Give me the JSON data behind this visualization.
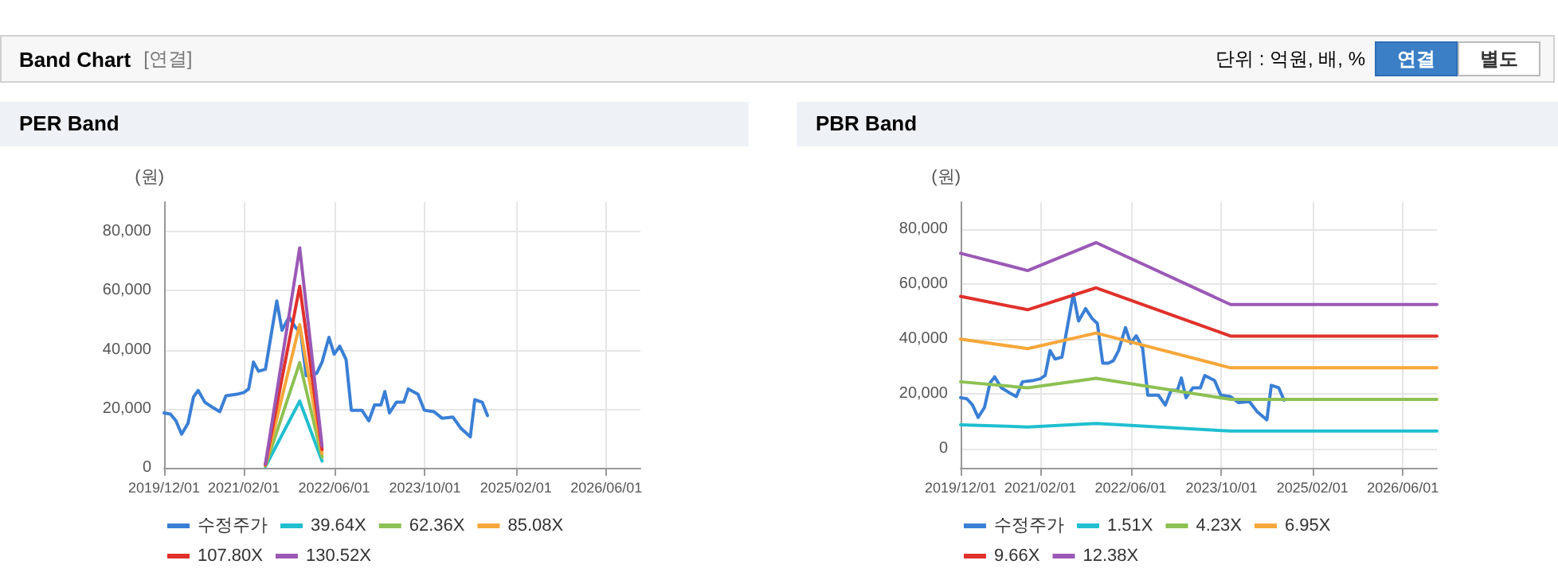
{
  "chart_data": [
    {
      "type": "other",
      "title": "Band Chart",
      "subtitle": "[연결]",
      "annotations": [
        "단위 : 억원, 배, %",
        "연결",
        "별도"
      ]
    },
    {
      "type": "line",
      "title": "PER Band",
      "ylabel": "(원)",
      "xlim": [
        "2019-12-01",
        "2026-12-01"
      ],
      "xticks": [
        {
          "value": "2019-12-01",
          "label": "2019/12/01"
        },
        {
          "value": "2021-02-01",
          "label": "2021/02/01"
        },
        {
          "value": "2022-06-01",
          "label": "2022/06/01"
        },
        {
          "value": "2023-10-01",
          "label": "2023/10/01"
        },
        {
          "value": "2025-02-01",
          "label": "2025/02/01"
        },
        {
          "value": "2026-06-01",
          "label": "2026/06/01"
        }
      ],
      "ylim": [
        0,
        90000
      ],
      "yticks": [
        {
          "value": 0,
          "label": "0"
        },
        {
          "value": 20000,
          "label": "20,000"
        },
        {
          "value": 40000,
          "label": "40,000"
        },
        {
          "value": 60000,
          "label": "60,000"
        },
        {
          "value": 80000,
          "label": "80,000"
        }
      ],
      "grid": true,
      "legend": "bottom",
      "series": [
        {
          "name": "수정주가",
          "color": "#3a7fd5",
          "x": [
            "2019-12-01",
            "2020-01-04",
            "2020-02-03",
            "2020-03-04",
            "2020-04-07",
            "2020-05-07",
            "2020-06-01",
            "2020-07-07",
            "2020-08-19",
            "2020-09-25",
            "2020-10-28",
            "2020-12-25",
            "2021-02-01",
            "2021-02-27",
            "2021-03-25",
            "2021-04-21",
            "2021-05-28",
            "2021-07-28",
            "2021-08-25",
            "2021-10-02",
            "2021-11-06",
            "2021-12-04",
            "2022-01-02",
            "2022-02-01",
            "2022-02-28",
            "2022-03-28",
            "2022-05-04",
            "2022-06-01",
            "2022-07-01",
            "2022-08-04",
            "2022-09-01",
            "2022-10-28",
            "2022-12-04",
            "2023-01-04",
            "2023-02-07",
            "2023-02-28",
            "2023-03-25",
            "2023-05-01",
            "2023-06-10",
            "2023-07-04",
            "2023-08-25",
            "2023-09-28",
            "2023-11-19",
            "2024-01-01",
            "2024-02-28",
            "2024-04-10",
            "2024-06-01",
            "2024-06-25",
            "2024-08-04",
            "2024-09-01"
          ],
          "values": [
            18600,
            18200,
            15900,
            11400,
            15000,
            24000,
            26200,
            22200,
            20400,
            19000,
            24400,
            24900,
            25500,
            26700,
            35800,
            32700,
            33400,
            56500,
            46600,
            51100,
            47500,
            45700,
            31200,
            31200,
            32100,
            35800,
            44200,
            38500,
            41200,
            36700,
            19500,
            19500,
            15900,
            21300,
            21300,
            25800,
            18600,
            22200,
            22200,
            26700,
            24900,
            19500,
            19000,
            16800,
            17200,
            13500,
            10500,
            23100,
            22200,
            17700
          ]
        },
        {
          "name": "39.64X",
          "color": "#1fbfcf",
          "x": [
            "2021-05-28",
            "2021-11-28",
            "2022-03-28"
          ],
          "values": [
            400,
            22600,
            2300
          ]
        },
        {
          "name": "62.36X",
          "color": "#8dc153",
          "x": [
            "2021-05-28",
            "2021-11-28",
            "2022-03-28"
          ],
          "values": [
            600,
            35600,
            3600
          ]
        },
        {
          "name": "85.08X",
          "color": "#f8a73a",
          "x": [
            "2021-05-28",
            "2021-11-28",
            "2022-03-28"
          ],
          "values": [
            900,
            48500,
            4900
          ]
        },
        {
          "name": "107.80X",
          "color": "#e0312b",
          "x": [
            "2021-05-28",
            "2021-11-28",
            "2022-03-28"
          ],
          "values": [
            1100,
            61500,
            6200
          ]
        },
        {
          "name": "130.52X",
          "color": "#9b59b6",
          "x": [
            "2021-05-28",
            "2021-11-28",
            "2022-03-28"
          ],
          "values": [
            1300,
            74500,
            7400
          ]
        }
      ]
    },
    {
      "type": "line",
      "title": "PBR Band",
      "ylabel": "(원)",
      "xlim": [
        "2019-12-01",
        "2026-12-01"
      ],
      "xticks": [
        {
          "value": "2019-12-01",
          "label": "2019/12/01"
        },
        {
          "value": "2021-02-01",
          "label": "2021/02/01"
        },
        {
          "value": "2022-06-01",
          "label": "2022/06/01"
        },
        {
          "value": "2023-10-01",
          "label": "2023/10/01"
        },
        {
          "value": "2025-02-01",
          "label": "2025/02/01"
        },
        {
          "value": "2026-06-01",
          "label": "2026/06/01"
        }
      ],
      "ylim": [
        -7000,
        90000
      ],
      "yticks": [
        {
          "value": 0,
          "label": "0"
        },
        {
          "value": 20000,
          "label": "20,000"
        },
        {
          "value": 40000,
          "label": "40,000"
        },
        {
          "value": 60000,
          "label": "60,000"
        },
        {
          "value": 80000,
          "label": "80,000"
        }
      ],
      "grid": true,
      "legend": "bottom",
      "series": [
        {
          "name": "수정주가",
          "color": "#3a7fd5",
          "x": [
            "2019-12-01",
            "2020-01-04",
            "2020-02-03",
            "2020-03-04",
            "2020-04-07",
            "2020-05-07",
            "2020-06-01",
            "2020-07-07",
            "2020-08-19",
            "2020-09-25",
            "2020-10-28",
            "2020-12-25",
            "2021-02-01",
            "2021-02-27",
            "2021-03-25",
            "2021-04-21",
            "2021-05-28",
            "2021-07-28",
            "2021-08-25",
            "2021-10-02",
            "2021-11-06",
            "2021-12-04",
            "2022-01-02",
            "2022-02-01",
            "2022-02-28",
            "2022-03-28",
            "2022-05-04",
            "2022-06-01",
            "2022-07-01",
            "2022-08-04",
            "2022-09-01",
            "2022-10-28",
            "2022-12-04",
            "2023-01-04",
            "2023-02-07",
            "2023-02-28",
            "2023-03-25",
            "2023-05-01",
            "2023-06-10",
            "2023-07-04",
            "2023-08-25",
            "2023-09-28",
            "2023-11-19",
            "2024-01-01",
            "2024-02-28",
            "2024-04-10",
            "2024-06-01",
            "2024-06-25",
            "2024-08-04",
            "2024-09-01"
          ],
          "values": [
            18600,
            18200,
            15900,
            11400,
            15000,
            24000,
            26200,
            22200,
            20400,
            19000,
            24400,
            24900,
            25500,
            26700,
            35800,
            32700,
            33400,
            56500,
            46600,
            51100,
            47500,
            45700,
            31200,
            31200,
            32100,
            35800,
            44200,
            38500,
            41200,
            36700,
            19500,
            19500,
            15900,
            21300,
            21300,
            25800,
            18600,
            22200,
            22200,
            26700,
            24900,
            19500,
            19000,
            16800,
            17200,
            13500,
            10500,
            23100,
            22200,
            17700
          ]
        },
        {
          "name": "1.51X",
          "color": "#1fbfcf",
          "x": [
            "2019-12-01",
            "2020-11-25",
            "2021-11-28",
            "2023-11-19",
            "2026-12-01"
          ],
          "values": [
            8700,
            7900,
            9200,
            6400,
            6400
          ]
        },
        {
          "name": "4.23X",
          "color": "#8dc153",
          "x": [
            "2019-12-01",
            "2020-11-25",
            "2021-11-28",
            "2023-11-19",
            "2026-12-01"
          ],
          "values": [
            24400,
            22200,
            25700,
            18000,
            18000
          ]
        },
        {
          "name": "6.95X",
          "color": "#f8a73a",
          "x": [
            "2019-12-01",
            "2020-11-25",
            "2021-11-28",
            "2023-11-19",
            "2026-12-01"
          ],
          "values": [
            40000,
            36500,
            42200,
            29500,
            29500
          ]
        },
        {
          "name": "9.66X",
          "color": "#e0312b",
          "x": [
            "2019-12-01",
            "2020-11-25",
            "2021-11-28",
            "2023-11-19",
            "2026-12-01"
          ],
          "values": [
            55600,
            50700,
            58700,
            41100,
            41100
          ]
        },
        {
          "name": "12.38X",
          "color": "#9b59b6",
          "x": [
            "2019-12-01",
            "2020-11-25",
            "2021-11-28",
            "2023-11-19",
            "2026-12-01"
          ],
          "values": [
            71300,
            65000,
            75200,
            52600,
            52600
          ]
        }
      ]
    }
  ]
}
